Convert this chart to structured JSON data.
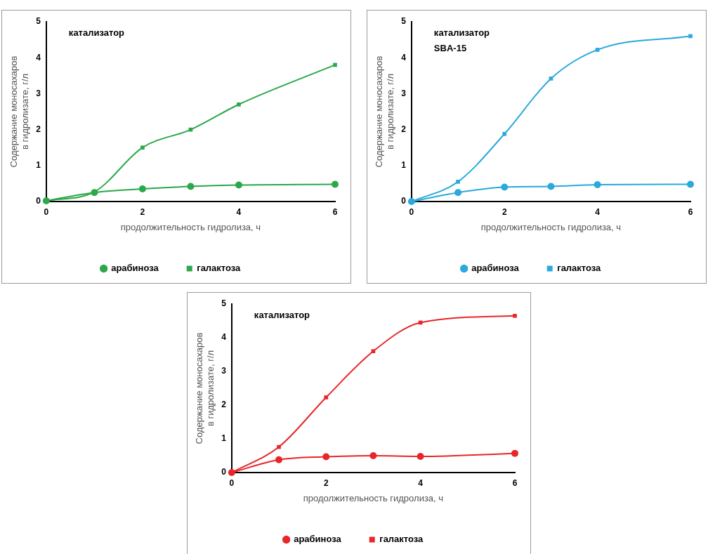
{
  "chart_data": [
    {
      "type": "line",
      "xlabel": "продолжительность гидролиза, ч",
      "ylabel": "Содержание моносахаров в гидролизате, г/л",
      "annotations": [
        "катализатор"
      ],
      "x": [
        0,
        1,
        2,
        3,
        4,
        6
      ],
      "xlim": [
        0,
        6
      ],
      "xticks": [
        0,
        2,
        4,
        6
      ],
      "ylim": [
        0,
        5
      ],
      "yticks": [
        0,
        1,
        2,
        3,
        4,
        5
      ],
      "grid": false,
      "legend": "bottom",
      "series": [
        {
          "name": "арабиноза",
          "color": "#2aa84a",
          "marker": "circle",
          "values": [
            0.02,
            0.25,
            0.35,
            0.42,
            0.46,
            0.48
          ]
        },
        {
          "name": "галактоза",
          "color": "#2aa84a",
          "marker": "square",
          "values": [
            0.02,
            0.27,
            1.5,
            2.0,
            2.7,
            3.8
          ]
        }
      ]
    },
    {
      "type": "line",
      "xlabel": "продолжительность гидролиза, ч",
      "ylabel": "Содержание моносахаров в гидролизате, г/л",
      "annotations": [
        "катализатор",
        "SBA-15"
      ],
      "x": [
        0,
        1,
        2,
        3,
        4,
        6
      ],
      "xlim": [
        0,
        6
      ],
      "xticks": [
        0,
        2,
        4,
        6
      ],
      "ylim": [
        0,
        5
      ],
      "yticks": [
        0,
        1,
        2,
        3,
        4,
        5
      ],
      "grid": false,
      "legend": "bottom",
      "series": [
        {
          "name": "арабиноза",
          "color": "#29a9dc",
          "marker": "circle",
          "values": [
            0,
            0.25,
            0.4,
            0.42,
            0.47,
            0.48
          ]
        },
        {
          "name": "галактоза",
          "color": "#29a9dc",
          "marker": "square",
          "values": [
            0,
            0.55,
            1.88,
            3.42,
            4.22,
            4.6
          ]
        }
      ]
    },
    {
      "type": "line",
      "xlabel": "продолжительность гидролиза, ч",
      "ylabel": "Содержание моносахаров в гидролизате, г/л",
      "annotations": [
        "катализатор"
      ],
      "x": [
        0,
        1,
        2,
        3,
        4,
        6
      ],
      "xlim": [
        0,
        6
      ],
      "xticks": [
        0,
        2,
        4,
        6
      ],
      "ylim": [
        0,
        5
      ],
      "yticks": [
        0,
        1,
        2,
        3,
        4,
        5
      ],
      "grid": false,
      "legend": "bottom",
      "series": [
        {
          "name": "арабиноза",
          "color": "#e8262a",
          "marker": "circle",
          "values": [
            0,
            0.38,
            0.47,
            0.5,
            0.48,
            0.57
          ]
        },
        {
          "name": "галактоза",
          "color": "#e8262a",
          "marker": "square",
          "values": [
            0,
            0.76,
            2.23,
            3.6,
            4.45,
            4.65
          ]
        }
      ]
    }
  ]
}
